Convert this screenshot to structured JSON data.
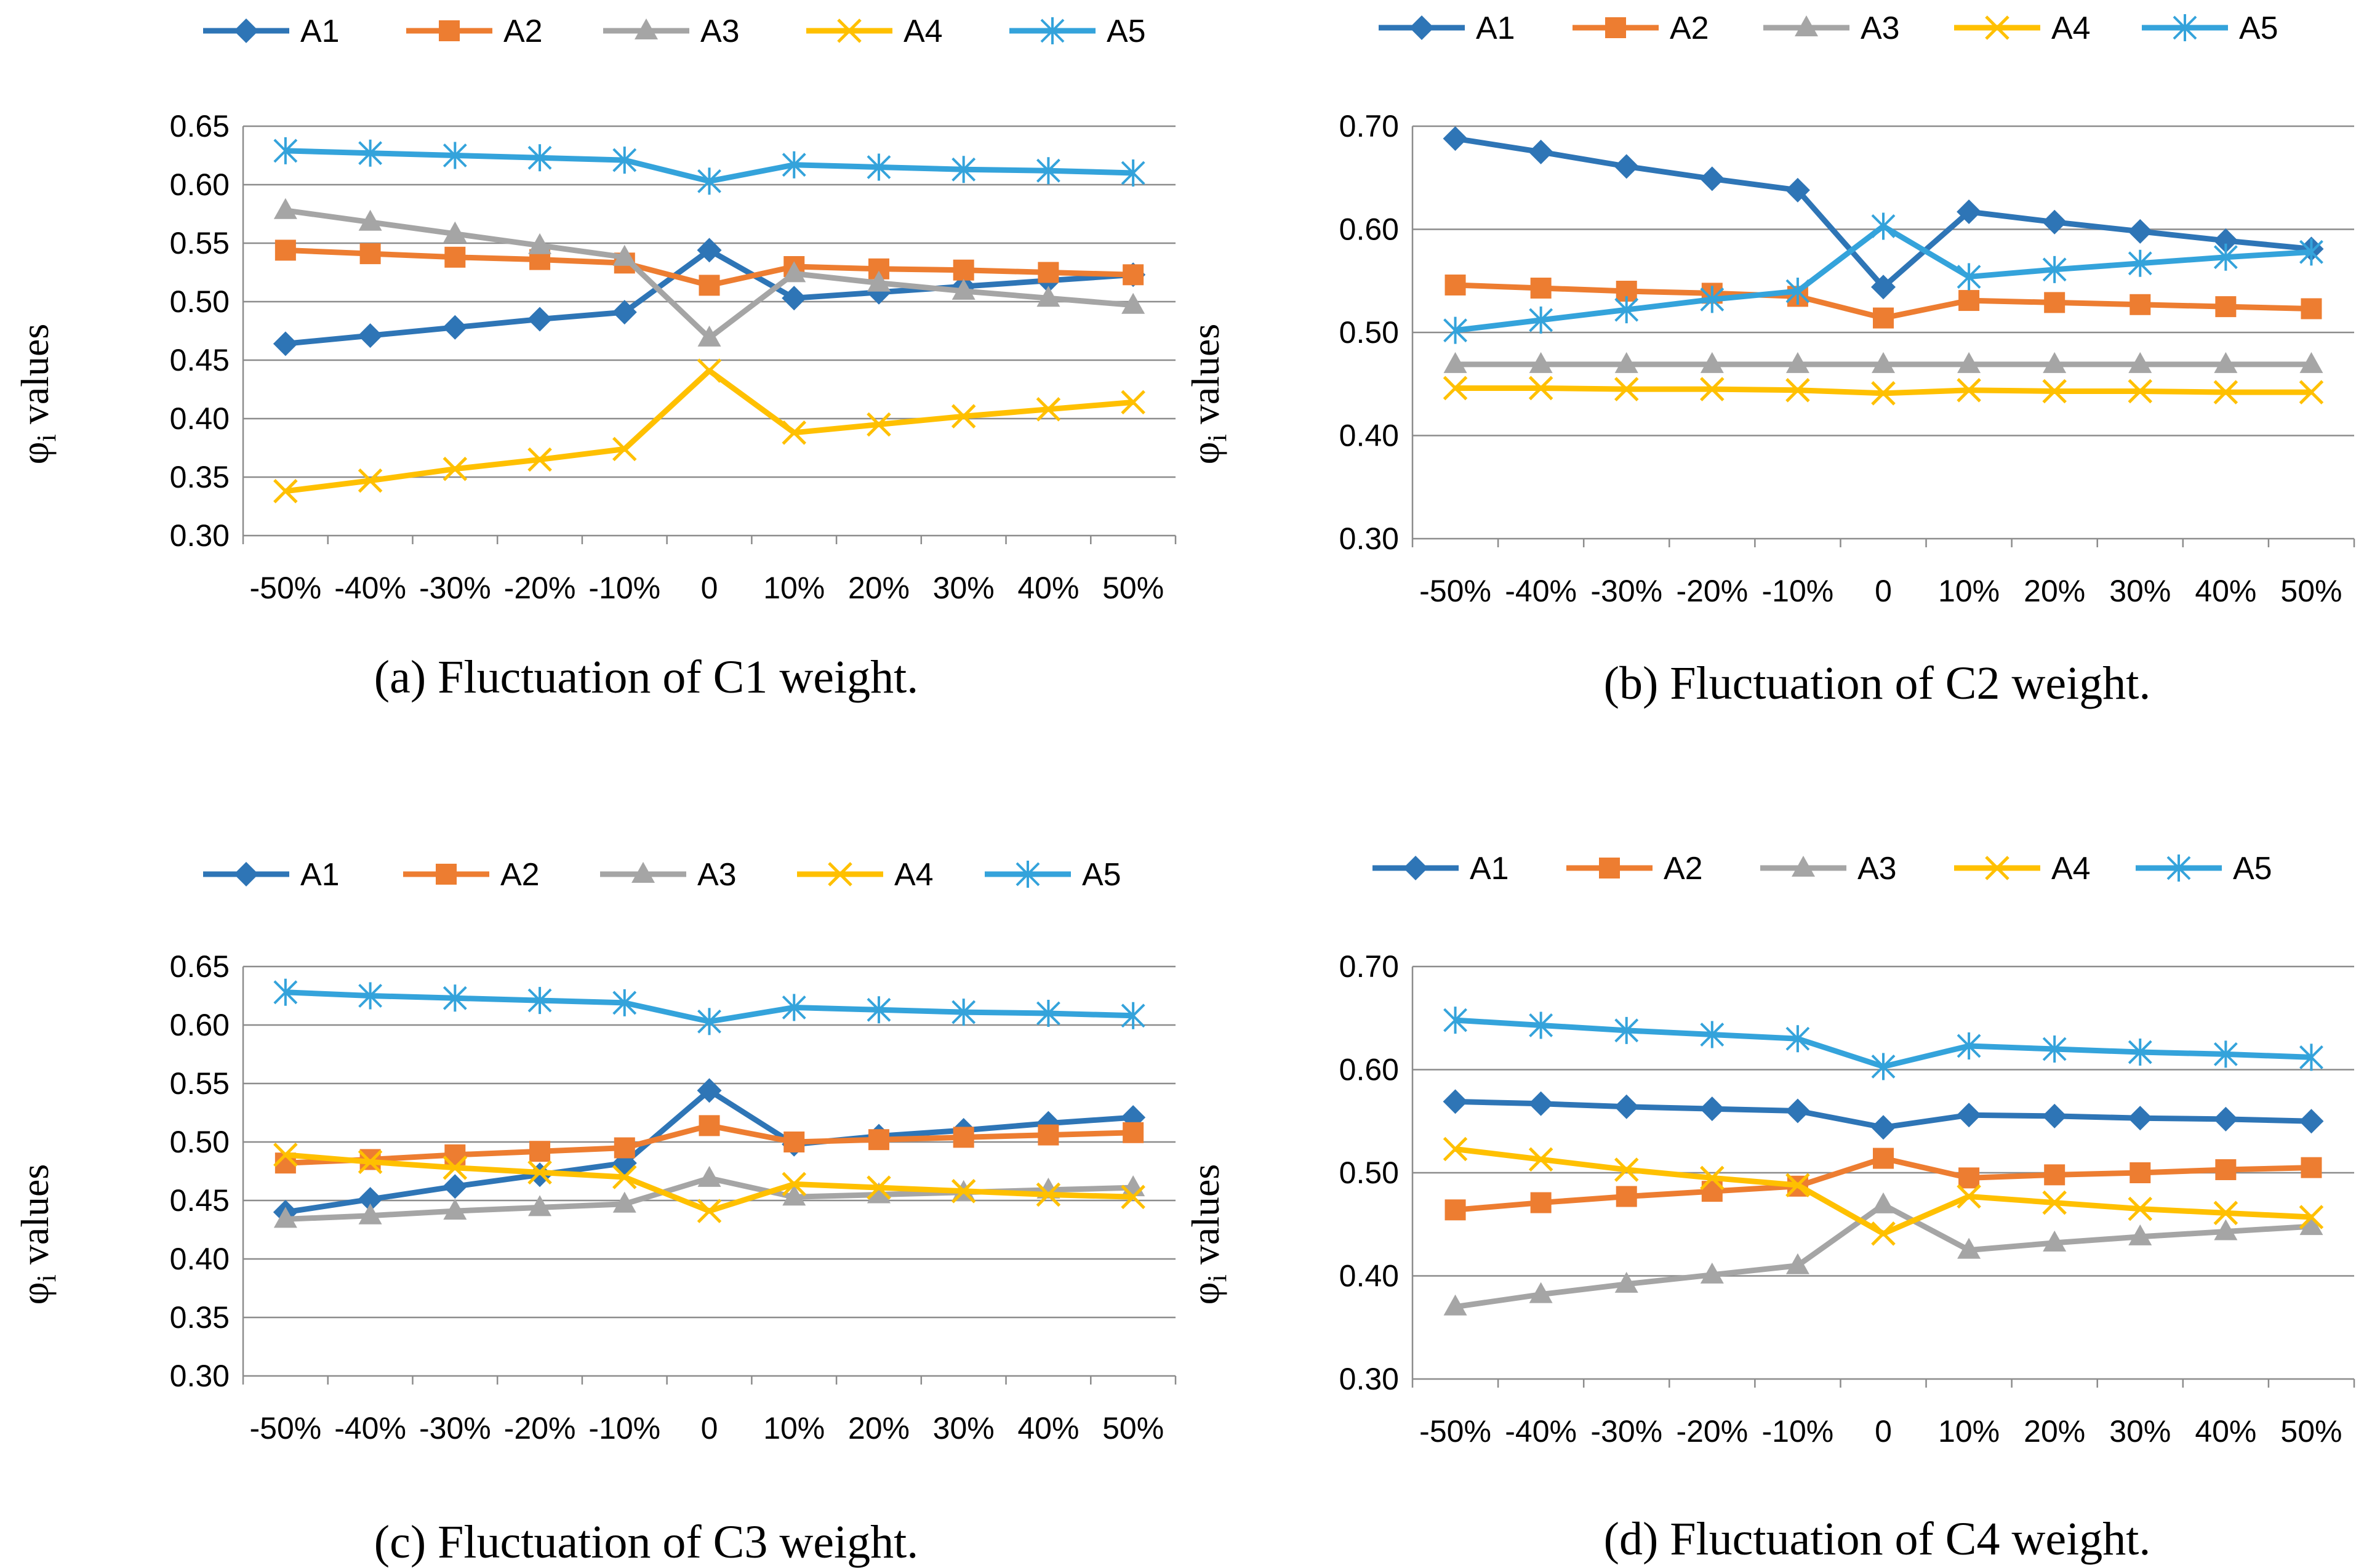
{
  "colors": {
    "A1": "#2E75B6",
    "A2": "#ED7D31",
    "A3": "#A5A5A5",
    "A4": "#FFC000",
    "A5": "#34A3DB",
    "grid": "#8C8C8C",
    "axis": "#8C8C8C"
  },
  "y_label": {
    "symbol": "φ",
    "subscript": "i",
    "suffix": "values"
  },
  "chart_data": [
    {
      "type": "line",
      "caption": {
        "tag": "(a)",
        "text": "Fluctuation of C1 weight."
      },
      "categories": [
        "-50%",
        "-40%",
        "-30%",
        "-20%",
        "-10%",
        "0",
        "10%",
        "20%",
        "30%",
        "40%",
        "50%"
      ],
      "yticks": [
        "0.30",
        "0.35",
        "0.40",
        "0.45",
        "0.50",
        "0.55",
        "0.60",
        "0.65"
      ],
      "ylim": [
        0.3,
        0.65
      ],
      "grid": true,
      "legend": "top",
      "series": [
        {
          "name": "A1",
          "marker": "diamond",
          "values": [
            0.464,
            0.471,
            0.478,
            0.485,
            0.491,
            0.544,
            0.503,
            0.508,
            0.513,
            0.518,
            0.523
          ]
        },
        {
          "name": "A2",
          "marker": "square",
          "values": [
            0.544,
            0.541,
            0.538,
            0.536,
            0.533,
            0.514,
            0.53,
            0.528,
            0.527,
            0.525,
            0.523
          ]
        },
        {
          "name": "A3",
          "marker": "triangle",
          "values": [
            0.578,
            0.568,
            0.558,
            0.548,
            0.538,
            0.469,
            0.524,
            0.516,
            0.509,
            0.503,
            0.497
          ]
        },
        {
          "name": "A4",
          "marker": "x",
          "values": [
            0.338,
            0.347,
            0.357,
            0.365,
            0.374,
            0.441,
            0.388,
            0.395,
            0.402,
            0.408,
            0.414
          ]
        },
        {
          "name": "A5",
          "marker": "star",
          "values": [
            0.629,
            0.627,
            0.625,
            0.623,
            0.621,
            0.603,
            0.617,
            0.615,
            0.613,
            0.612,
            0.61
          ]
        }
      ]
    },
    {
      "type": "line",
      "caption": {
        "tag": "(b)",
        "text": "Fluctuation of C2 weight."
      },
      "categories": [
        "-50%",
        "-40%",
        "-30%",
        "-20%",
        "-10%",
        "0",
        "10%",
        "20%",
        "30%",
        "40%",
        "50%"
      ],
      "yticks": [
        "0.30",
        "0.40",
        "0.50",
        "0.60",
        "0.70"
      ],
      "ylim": [
        0.3,
        0.7
      ],
      "grid": true,
      "legend": "top",
      "series": [
        {
          "name": "A1",
          "marker": "diamond",
          "values": [
            0.688,
            0.675,
            0.661,
            0.649,
            0.638,
            0.544,
            0.617,
            0.607,
            0.598,
            0.589,
            0.581
          ]
        },
        {
          "name": "A2",
          "marker": "square",
          "values": [
            0.546,
            0.543,
            0.54,
            0.538,
            0.535,
            0.514,
            0.531,
            0.529,
            0.527,
            0.525,
            0.523
          ]
        },
        {
          "name": "A3",
          "marker": "triangle",
          "values": [
            0.469,
            0.469,
            0.469,
            0.469,
            0.469,
            0.469,
            0.469,
            0.469,
            0.469,
            0.469,
            0.469
          ]
        },
        {
          "name": "A4",
          "marker": "x",
          "values": [
            0.446,
            0.446,
            0.445,
            0.445,
            0.444,
            0.441,
            0.444,
            0.443,
            0.443,
            0.442,
            0.442
          ]
        },
        {
          "name": "A5",
          "marker": "star",
          "values": [
            0.502,
            0.512,
            0.522,
            0.532,
            0.54,
            0.603,
            0.554,
            0.561,
            0.567,
            0.573,
            0.578
          ]
        }
      ]
    },
    {
      "type": "line",
      "caption": {
        "tag": "(c)",
        "text": "Fluctuation of C3 weight."
      },
      "categories": [
        "-50%",
        "-40%",
        "-30%",
        "-20%",
        "-10%",
        "0",
        "10%",
        "20%",
        "30%",
        "40%",
        "50%"
      ],
      "yticks": [
        "0.30",
        "0.35",
        "0.40",
        "0.45",
        "0.50",
        "0.55",
        "0.60",
        "0.65"
      ],
      "ylim": [
        0.3,
        0.65
      ],
      "grid": true,
      "legend": "top",
      "series": [
        {
          "name": "A1",
          "marker": "diamond",
          "values": [
            0.44,
            0.451,
            0.462,
            0.472,
            0.482,
            0.544,
            0.498,
            0.505,
            0.51,
            0.516,
            0.521
          ]
        },
        {
          "name": "A2",
          "marker": "square",
          "values": [
            0.482,
            0.485,
            0.489,
            0.492,
            0.495,
            0.514,
            0.5,
            0.502,
            0.504,
            0.506,
            0.508
          ]
        },
        {
          "name": "A3",
          "marker": "triangle",
          "values": [
            0.434,
            0.437,
            0.441,
            0.444,
            0.447,
            0.469,
            0.453,
            0.455,
            0.457,
            0.459,
            0.461
          ]
        },
        {
          "name": "A4",
          "marker": "x",
          "values": [
            0.489,
            0.483,
            0.478,
            0.474,
            0.47,
            0.441,
            0.464,
            0.461,
            0.458,
            0.455,
            0.453
          ]
        },
        {
          "name": "A5",
          "marker": "star",
          "values": [
            0.628,
            0.625,
            0.623,
            0.621,
            0.619,
            0.603,
            0.615,
            0.613,
            0.611,
            0.61,
            0.608
          ]
        }
      ]
    },
    {
      "type": "line",
      "caption": {
        "tag": "(d)",
        "text": "Fluctuation of C4 weight."
      },
      "categories": [
        "-50%",
        "-40%",
        "-30%",
        "-20%",
        "-10%",
        "0",
        "10%",
        "20%",
        "30%",
        "40%",
        "50%"
      ],
      "yticks": [
        "0.30",
        "0.40",
        "0.50",
        "0.60",
        "0.70"
      ],
      "ylim": [
        0.3,
        0.7
      ],
      "grid": true,
      "legend": "top",
      "series": [
        {
          "name": "A1",
          "marker": "diamond",
          "values": [
            0.569,
            0.567,
            0.564,
            0.562,
            0.56,
            0.544,
            0.556,
            0.555,
            0.553,
            0.552,
            0.55
          ]
        },
        {
          "name": "A2",
          "marker": "square",
          "values": [
            0.464,
            0.471,
            0.477,
            0.482,
            0.487,
            0.514,
            0.495,
            0.498,
            0.5,
            0.503,
            0.505
          ]
        },
        {
          "name": "A3",
          "marker": "triangle",
          "values": [
            0.37,
            0.382,
            0.392,
            0.401,
            0.41,
            0.469,
            0.425,
            0.432,
            0.438,
            0.443,
            0.448
          ]
        },
        {
          "name": "A4",
          "marker": "x",
          "values": [
            0.523,
            0.513,
            0.503,
            0.495,
            0.488,
            0.441,
            0.477,
            0.471,
            0.465,
            0.461,
            0.457
          ]
        },
        {
          "name": "A5",
          "marker": "star",
          "values": [
            0.648,
            0.643,
            0.638,
            0.634,
            0.63,
            0.603,
            0.623,
            0.62,
            0.617,
            0.615,
            0.612
          ]
        }
      ]
    }
  ]
}
